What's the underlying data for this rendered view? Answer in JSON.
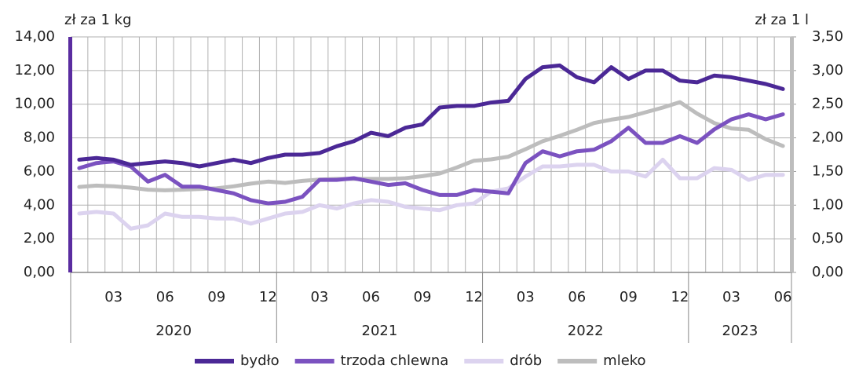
{
  "chart_data": {
    "type": "line",
    "y_label": "zł za 1 kg",
    "y2_label": "zł za 1 l",
    "categories": [
      null,
      null,
      "03",
      null,
      null,
      "06",
      null,
      null,
      "09",
      null,
      null,
      "12",
      null,
      null,
      "03",
      null,
      null,
      "06",
      null,
      null,
      "09",
      null,
      null,
      "12",
      null,
      null,
      "03",
      null,
      null,
      "06",
      null,
      null,
      "09",
      null,
      null,
      "12",
      null,
      null,
      "03",
      null,
      null,
      "06"
    ],
    "years": [
      "2020",
      "2021",
      "2022",
      "2023"
    ],
    "ylim": [
      0,
      14
    ],
    "y2lim": [
      0,
      3.5
    ],
    "yticks": [
      {
        "value": 0,
        "label": "0,00"
      },
      {
        "value": 2,
        "label": "2,00"
      },
      {
        "value": 4,
        "label": "4,00"
      },
      {
        "value": 6,
        "label": "6,00"
      },
      {
        "value": 8,
        "label": "8,00"
      },
      {
        "value": 10,
        "label": "10,00"
      },
      {
        "value": 12,
        "label": "12,00"
      },
      {
        "value": 14,
        "label": "14,00"
      }
    ],
    "y2ticks": [
      {
        "value": 0,
        "label": "0,00"
      },
      {
        "value": 0.5,
        "label": "0,50"
      },
      {
        "value": 1,
        "label": "1,00"
      },
      {
        "value": 1.5,
        "label": "1,50"
      },
      {
        "value": 2,
        "label": "2,00"
      },
      {
        "value": 2.5,
        "label": "2,50"
      },
      {
        "value": 3,
        "label": "3,00"
      },
      {
        "value": 3.5,
        "label": "3,50"
      }
    ],
    "grid": true,
    "series": [
      {
        "name": "bydło",
        "color": "#4b2896",
        "values": [
          6.7,
          6.8,
          6.7,
          6.4,
          6.5,
          6.6,
          6.5,
          6.3,
          6.5,
          6.7,
          6.5,
          6.8,
          7.0,
          7.0,
          7.1,
          7.5,
          7.8,
          8.3,
          8.1,
          8.6,
          8.8,
          9.8,
          9.9,
          9.9,
          10.1,
          10.2,
          11.5,
          12.2,
          12.3,
          11.6,
          11.3,
          12.2,
          11.5,
          12.0,
          12.0,
          11.4,
          11.3,
          11.7,
          11.6,
          11.4,
          11.2,
          10.9
        ]
      },
      {
        "name": "trzoda chlewna",
        "color": "#7b52c0",
        "values": [
          6.2,
          6.5,
          6.6,
          6.3,
          5.4,
          5.8,
          5.1,
          5.1,
          4.9,
          4.7,
          4.3,
          4.1,
          4.2,
          4.5,
          5.5,
          5.5,
          5.6,
          5.4,
          5.2,
          5.3,
          4.9,
          4.6,
          4.6,
          4.9,
          4.8,
          4.7,
          6.5,
          7.2,
          6.9,
          7.2,
          7.3,
          7.8,
          8.6,
          7.7,
          7.7,
          8.1,
          7.7,
          8.5,
          9.1,
          9.4,
          9.1,
          9.4
        ]
      },
      {
        "name": "drób",
        "color": "#dcd3ef",
        "values": [
          3.5,
          3.6,
          3.5,
          2.6,
          2.8,
          3.5,
          3.3,
          3.3,
          3.2,
          3.2,
          2.9,
          3.2,
          3.5,
          3.6,
          4.0,
          3.8,
          4.1,
          4.3,
          4.2,
          3.9,
          3.8,
          3.7,
          4.0,
          4.1,
          4.8,
          5.0,
          5.7,
          6.3,
          6.3,
          6.4,
          6.4,
          6.0,
          6.0,
          5.7,
          6.7,
          5.6,
          5.6,
          6.2,
          6.1,
          5.5,
          5.8,
          5.8
        ]
      },
      {
        "name": "mleko",
        "color": "#bdbdbd",
        "axis": "y2",
        "values": [
          1.27,
          1.29,
          1.28,
          1.26,
          1.23,
          1.22,
          1.23,
          1.24,
          1.25,
          1.28,
          1.32,
          1.35,
          1.33,
          1.36,
          1.38,
          1.39,
          1.39,
          1.39,
          1.39,
          1.4,
          1.43,
          1.47,
          1.56,
          1.66,
          1.68,
          1.72,
          1.83,
          1.95,
          2.03,
          2.12,
          2.22,
          2.27,
          2.31,
          2.38,
          2.45,
          2.53,
          2.36,
          2.22,
          2.14,
          2.12,
          1.98,
          1.88
        ]
      }
    ]
  }
}
